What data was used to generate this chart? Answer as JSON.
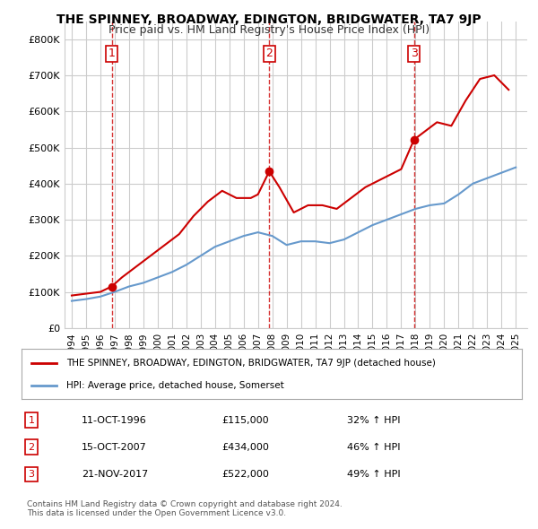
{
  "title": "THE SPINNEY, BROADWAY, EDINGTON, BRIDGWATER, TA7 9JP",
  "subtitle": "Price paid vs. HM Land Registry's House Price Index (HPI)",
  "property_label": "THE SPINNEY, BROADWAY, EDINGTON, BRIDGWATER, TA7 9JP (detached house)",
  "hpi_label": "HPI: Average price, detached house, Somerset",
  "red_color": "#cc0000",
  "blue_color": "#6699cc",
  "grid_color": "#cccccc",
  "background_color": "#ffffff",
  "sale_dates": [
    "1996-10-11",
    "2007-10-15",
    "2017-11-21"
  ],
  "sale_prices": [
    115000,
    434000,
    522000
  ],
  "sale_labels": [
    "1",
    "2",
    "3"
  ],
  "sale_info": [
    [
      "1",
      "11-OCT-1996",
      "£115,000",
      "32% ↑ HPI"
    ],
    [
      "2",
      "15-OCT-2007",
      "£434,000",
      "46% ↑ HPI"
    ],
    [
      "3",
      "21-NOV-2017",
      "£522,000",
      "49% ↑ HPI"
    ]
  ],
  "footer": "Contains HM Land Registry data © Crown copyright and database right 2024.\nThis data is licensed under the Open Government Licence v3.0.",
  "red_line_x": [
    1994.0,
    1995.0,
    1996.0,
    1996.79,
    1997.5,
    1998.5,
    1999.5,
    2000.5,
    2001.5,
    2002.5,
    2003.5,
    2004.5,
    2005.5,
    2006.5,
    2007.0,
    2007.79,
    2008.5,
    2009.5,
    2010.5,
    2011.5,
    2012.5,
    2013.5,
    2014.5,
    2015.5,
    2016.5,
    2017.0,
    2017.9,
    2018.5,
    2019.5,
    2020.5,
    2021.5,
    2022.5,
    2023.5,
    2024.5
  ],
  "red_line_y": [
    90000,
    95000,
    100000,
    115000,
    140000,
    170000,
    200000,
    230000,
    260000,
    310000,
    350000,
    380000,
    360000,
    360000,
    370000,
    434000,
    390000,
    320000,
    340000,
    340000,
    330000,
    360000,
    390000,
    410000,
    430000,
    440000,
    522000,
    540000,
    570000,
    560000,
    630000,
    690000,
    700000,
    660000
  ],
  "blue_line_x": [
    1994.0,
    1995.0,
    1996.0,
    1997.0,
    1998.0,
    1999.0,
    2000.0,
    2001.0,
    2002.0,
    2003.0,
    2004.0,
    2005.0,
    2006.0,
    2007.0,
    2008.0,
    2009.0,
    2010.0,
    2011.0,
    2012.0,
    2013.0,
    2014.0,
    2015.0,
    2016.0,
    2017.0,
    2018.0,
    2019.0,
    2020.0,
    2021.0,
    2022.0,
    2023.0,
    2024.0,
    2025.0
  ],
  "blue_line_y": [
    75000,
    80000,
    87000,
    100000,
    115000,
    125000,
    140000,
    155000,
    175000,
    200000,
    225000,
    240000,
    255000,
    265000,
    255000,
    230000,
    240000,
    240000,
    235000,
    245000,
    265000,
    285000,
    300000,
    315000,
    330000,
    340000,
    345000,
    370000,
    400000,
    415000,
    430000,
    445000
  ],
  "vline_dates": [
    1996.79,
    2007.79,
    2017.9
  ],
  "xlim": [
    1993.5,
    2025.8
  ],
  "ylim": [
    0,
    850000
  ],
  "yticks": [
    0,
    100000,
    200000,
    300000,
    400000,
    500000,
    600000,
    700000,
    800000
  ],
  "xticks": [
    1994,
    1995,
    1996,
    1997,
    1998,
    1999,
    2000,
    2001,
    2002,
    2003,
    2004,
    2005,
    2006,
    2007,
    2008,
    2009,
    2010,
    2011,
    2012,
    2013,
    2014,
    2015,
    2016,
    2017,
    2018,
    2019,
    2020,
    2021,
    2022,
    2023,
    2024,
    2025
  ]
}
